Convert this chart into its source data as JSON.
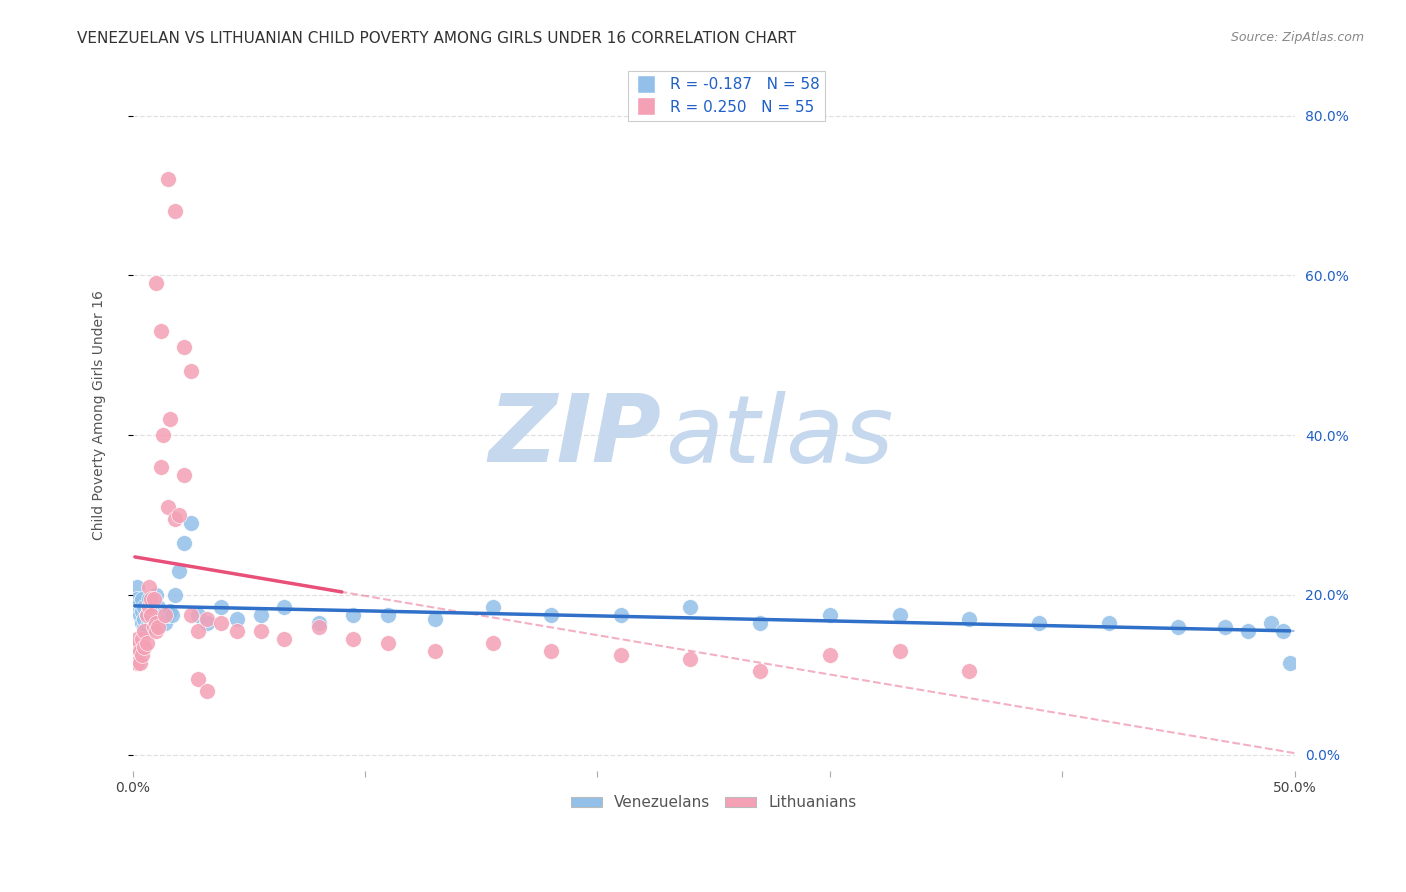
{
  "title": "VENEZUELAN VS LITHUANIAN CHILD POVERTY AMONG GIRLS UNDER 16 CORRELATION CHART",
  "source": "Source: ZipAtlas.com",
  "ylabel": "Child Poverty Among Girls Under 16",
  "xlim": [
    0.0,
    0.5
  ],
  "ylim": [
    -0.02,
    0.87
  ],
  "xticks": [
    0.0,
    0.1,
    0.2,
    0.3,
    0.4,
    0.5
  ],
  "xticklabels": [
    "0.0%",
    "",
    "",
    "",
    "",
    "50.0%"
  ],
  "yticks": [
    0.0,
    0.2,
    0.4,
    0.6,
    0.8
  ],
  "yticklabels": [
    "0.0%",
    "20.0%",
    "40.0%",
    "60.0%",
    "80.0%"
  ],
  "venezuelan_color": "#92c0e8",
  "lithuanian_color": "#f4a0b5",
  "venezuelan_line_color": "#3070c8",
  "lithuanian_line_color": "#e8507a",
  "R_ven": -0.187,
  "N_ven": 58,
  "R_lit": 0.25,
  "N_lit": 55,
  "accent_color": "#2060c8",
  "watermark_zip_color": "#c5d8ee",
  "watermark_atlas_color": "#c5d8ee",
  "background_color": "#ffffff",
  "grid_color": "#e0e0e0",
  "title_fontsize": 11,
  "axis_label_fontsize": 10,
  "tick_fontsize": 10,
  "legend_fontsize": 11,
  "venezuelan_x": [
    0.001,
    0.002,
    0.002,
    0.003,
    0.003,
    0.004,
    0.004,
    0.004,
    0.005,
    0.005,
    0.005,
    0.006,
    0.006,
    0.007,
    0.007,
    0.008,
    0.008,
    0.009,
    0.009,
    0.01,
    0.01,
    0.011,
    0.012,
    0.013,
    0.014,
    0.015,
    0.016,
    0.017,
    0.018,
    0.02,
    0.022,
    0.025,
    0.028,
    0.032,
    0.038,
    0.045,
    0.055,
    0.065,
    0.08,
    0.095,
    0.11,
    0.13,
    0.155,
    0.18,
    0.21,
    0.24,
    0.27,
    0.3,
    0.33,
    0.36,
    0.39,
    0.42,
    0.45,
    0.47,
    0.48,
    0.49,
    0.495,
    0.498
  ],
  "venezuelan_y": [
    0.185,
    0.21,
    0.195,
    0.175,
    0.19,
    0.165,
    0.18,
    0.195,
    0.16,
    0.17,
    0.185,
    0.175,
    0.16,
    0.185,
    0.195,
    0.165,
    0.175,
    0.16,
    0.19,
    0.175,
    0.2,
    0.185,
    0.17,
    0.175,
    0.165,
    0.175,
    0.18,
    0.175,
    0.2,
    0.23,
    0.265,
    0.29,
    0.175,
    0.165,
    0.185,
    0.17,
    0.175,
    0.185,
    0.165,
    0.175,
    0.175,
    0.17,
    0.185,
    0.175,
    0.175,
    0.185,
    0.165,
    0.175,
    0.175,
    0.17,
    0.165,
    0.165,
    0.16,
    0.16,
    0.155,
    0.165,
    0.155,
    0.115
  ],
  "lithuanian_x": [
    0.001,
    0.002,
    0.002,
    0.003,
    0.003,
    0.004,
    0.004,
    0.005,
    0.005,
    0.006,
    0.006,
    0.007,
    0.007,
    0.008,
    0.008,
    0.009,
    0.009,
    0.01,
    0.01,
    0.011,
    0.012,
    0.013,
    0.014,
    0.015,
    0.016,
    0.018,
    0.02,
    0.022,
    0.025,
    0.028,
    0.032,
    0.038,
    0.045,
    0.055,
    0.065,
    0.08,
    0.095,
    0.11,
    0.13,
    0.155,
    0.18,
    0.21,
    0.24,
    0.27,
    0.3,
    0.33,
    0.36,
    0.01,
    0.012,
    0.015,
    0.018,
    0.022,
    0.025,
    0.028,
    0.032
  ],
  "lithuanian_y": [
    0.135,
    0.145,
    0.115,
    0.13,
    0.115,
    0.145,
    0.125,
    0.135,
    0.155,
    0.14,
    0.175,
    0.185,
    0.21,
    0.175,
    0.195,
    0.16,
    0.195,
    0.165,
    0.155,
    0.16,
    0.36,
    0.4,
    0.175,
    0.31,
    0.42,
    0.295,
    0.3,
    0.35,
    0.175,
    0.155,
    0.17,
    0.165,
    0.155,
    0.155,
    0.145,
    0.16,
    0.145,
    0.14,
    0.13,
    0.14,
    0.13,
    0.125,
    0.12,
    0.105,
    0.125,
    0.13,
    0.105,
    0.59,
    0.53,
    0.72,
    0.68,
    0.51,
    0.48,
    0.095,
    0.08
  ]
}
